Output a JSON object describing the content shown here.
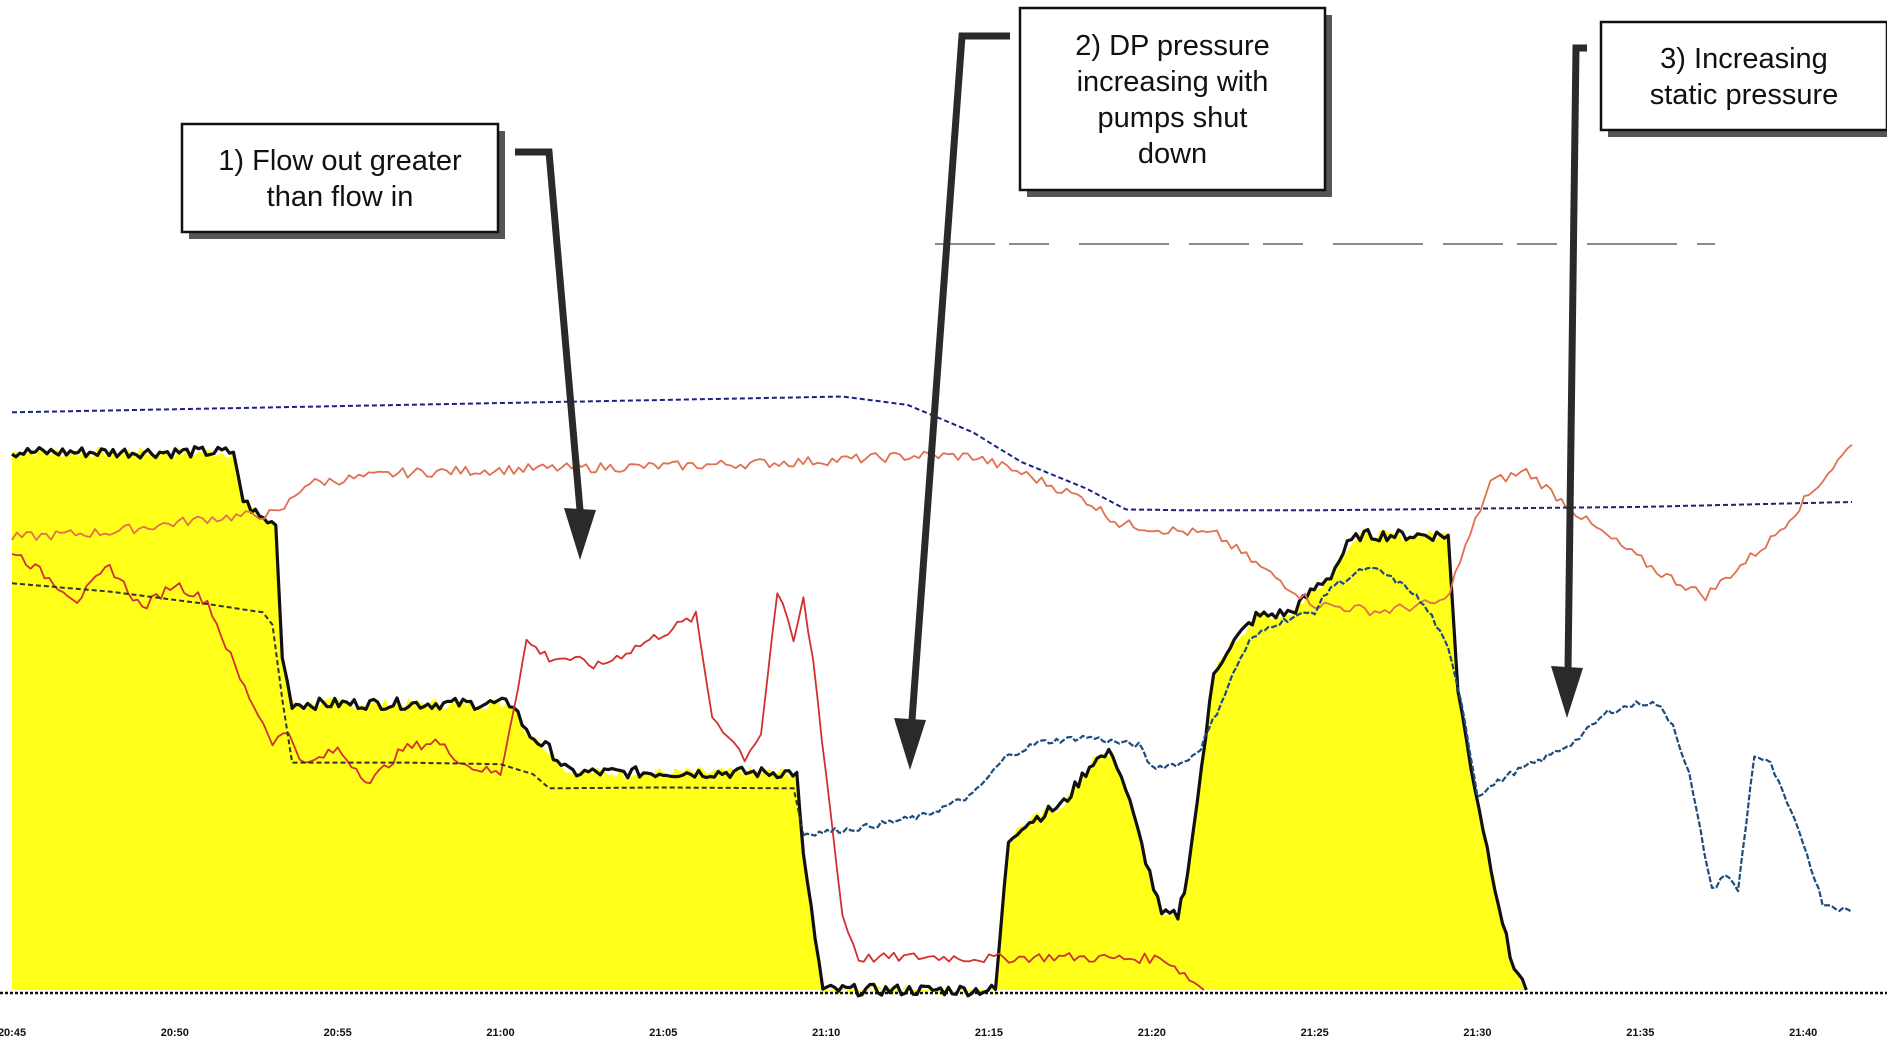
{
  "chart_data": {
    "type": "line",
    "x_tick_labels": [
      "20:45",
      "20:50",
      "20:55",
      "21:00",
      "21:05",
      "21:10",
      "21:15",
      "21:20",
      "21:25",
      "21:30",
      "21:35",
      "21:40"
    ],
    "x_range_minutes": [
      0,
      56.5
    ],
    "y_range": [
      0,
      100
    ],
    "grid": false,
    "legend": "none",
    "annotations": [
      {
        "lines": [
          "1) Flow out greater",
          "than flow in"
        ]
      },
      {
        "lines": [
          "2) DP pressure",
          "increasing with",
          "pumps shut",
          "down"
        ]
      },
      {
        "lines": [
          "3) Increasing",
          "static pressure"
        ]
      }
    ],
    "series": [
      {
        "color": "#ffff1a",
        "style": "filled-area",
        "x": [
          0,
          6.8,
          7.1,
          7.6,
          8.1,
          8.3,
          8.6,
          15.4,
          15.8,
          16.5,
          17.1,
          24.1,
          24.3,
          24.9,
          30.2,
          30.6,
          31.0,
          32.3,
          33.2,
          33.8,
          34.2,
          35.3,
          35.8,
          36.1,
          36.4,
          36.9,
          37.3,
          38.2,
          39.3,
          40.1,
          40.5,
          41.0,
          41.4,
          44.1,
          44.4,
          44.8,
          45.3,
          46.0,
          46.5
        ],
        "y": [
          64.8,
          64.8,
          59,
          57,
          56,
          40,
          34.5,
          34.5,
          31,
          29,
          26.2,
          26.2,
          16,
          0,
          0,
          18,
          19.8,
          22.5,
          27.6,
          28.6,
          24.2,
          9,
          9,
          14,
          23,
          38,
          41,
          45,
          45.5,
          48.8,
          50,
          53.5,
          54.8,
          54.8,
          36,
          27,
          17,
          4,
          0
        ]
      },
      {
        "color": "#111111",
        "style": "solid-thick",
        "x": [
          0,
          6.8,
          7.1,
          7.6,
          8.1,
          8.3,
          8.6,
          15.4,
          15.8,
          16.5,
          17.1,
          24.1,
          24.3,
          24.9,
          30.2,
          30.6,
          31.0,
          32.3,
          33.2,
          33.8,
          34.2,
          35.3,
          35.8,
          36.1,
          36.4,
          36.9,
          37.3,
          38.2,
          39.3,
          40.1,
          40.5,
          41.0,
          41.4,
          44.1,
          44.4,
          44.8,
          45.3,
          46.0,
          46.5
        ],
        "y": [
          64.8,
          64.8,
          59,
          57,
          56,
          40,
          34.5,
          34.5,
          31,
          29,
          26.2,
          26.2,
          16,
          0,
          0,
          18,
          19.8,
          22.5,
          27.6,
          28.6,
          24.2,
          9,
          9,
          14,
          23,
          38,
          41,
          45,
          45.5,
          48.8,
          50,
          53.5,
          54.8,
          54.8,
          36,
          27,
          17,
          4,
          0
        ]
      },
      {
        "color": "#e07050",
        "style": "solid-thin",
        "x": [
          0,
          3,
          6,
          8.2,
          9,
          12,
          16,
          20,
          24,
          28,
          29.5,
          31,
          33,
          34,
          35.5,
          37,
          38.5,
          40,
          42,
          44,
          45.4,
          46.5,
          48.5,
          50.5,
          52,
          54,
          56.5
        ],
        "y": [
          54.5,
          55.2,
          56.8,
          57.4,
          61,
          62.3,
          62.8,
          63.1,
          63.6,
          64.4,
          64.3,
          62.3,
          59,
          56.2,
          55.4,
          54.8,
          50.5,
          46.5,
          45.6,
          46.8,
          61.2,
          62.5,
          56,
          50.5,
          47.5,
          54.2,
          65.7
        ]
      },
      {
        "color": "#1a237e",
        "style": "dashed",
        "x": [
          0,
          25.5,
          27.5,
          29.5,
          31,
          33,
          34.2,
          36,
          40,
          50,
          56.5
        ],
        "y": [
          69.6,
          71.5,
          70.5,
          67.2,
          63.6,
          60.4,
          57.9,
          57.8,
          57.8,
          58.2,
          58.8
        ]
      },
      {
        "color": "#d32f2f",
        "style": "solid-thin",
        "x": [
          0,
          1,
          2,
          3,
          4,
          5,
          6,
          7,
          8,
          8.5,
          9,
          10,
          11,
          12,
          13,
          14,
          15,
          15.4,
          15.8,
          16.5,
          17,
          18,
          19,
          20,
          21,
          21.5,
          22,
          22.5,
          23,
          23.5,
          24,
          24.3,
          24.6,
          25,
          25.5,
          26,
          28,
          30,
          32,
          34,
          35.4,
          36.6
        ],
        "y": [
          53,
          50,
          47,
          51,
          46,
          49,
          46.8,
          37.5,
          30,
          31,
          27,
          29,
          25,
          29,
          30,
          27,
          26,
          34,
          42,
          40,
          40,
          39,
          41,
          43,
          45,
          33,
          30.7,
          28,
          31,
          48,
          42,
          47,
          39.7,
          26,
          9,
          3.8,
          4,
          3.8,
          4,
          3.8,
          3.8,
          0
        ]
      },
      {
        "color": "#1e4d7b",
        "style": "dash-dot",
        "x": [
          24.3,
          26,
          28,
          29.5,
          30.5,
          31.5,
          33,
          34,
          34.6,
          35,
          36,
          36.5,
          37,
          37.6,
          38,
          38.7,
          39.4,
          40,
          40.5,
          41,
          41.5,
          42,
          43,
          43.6,
          44.1,
          44.5,
          45,
          46,
          47,
          48,
          49,
          50,
          50.5,
          51,
          51.5,
          52.2,
          52.6,
          53,
          53.5,
          54,
          55,
          55.6,
          56.5
        ],
        "y": [
          18.8,
          19.5,
          21,
          23.5,
          28,
          29.8,
          30.5,
          29.8,
          29.5,
          26.8,
          27.4,
          29.2,
          33.5,
          39,
          42,
          44,
          45,
          45.6,
          48.6,
          49.5,
          50.7,
          50.5,
          48,
          45,
          41,
          35,
          23.5,
          26,
          27.8,
          30,
          33.5,
          34.6,
          34.5,
          32,
          26,
          12,
          14,
          12,
          28.3,
          27.2,
          17.8,
          10.5,
          9.4
        ]
      },
      {
        "color": "#333333",
        "style": "dashed",
        "x": [
          0,
          3,
          6,
          7.7,
          8.0,
          8.3,
          8.6,
          12,
          15,
          16,
          16.5,
          20,
          24,
          24.3
        ],
        "y": [
          49,
          48,
          46.5,
          45.5,
          44,
          35,
          27.4,
          27.4,
          27.2,
          26,
          24.3,
          24.4,
          24.3,
          18.8
        ]
      }
    ]
  }
}
